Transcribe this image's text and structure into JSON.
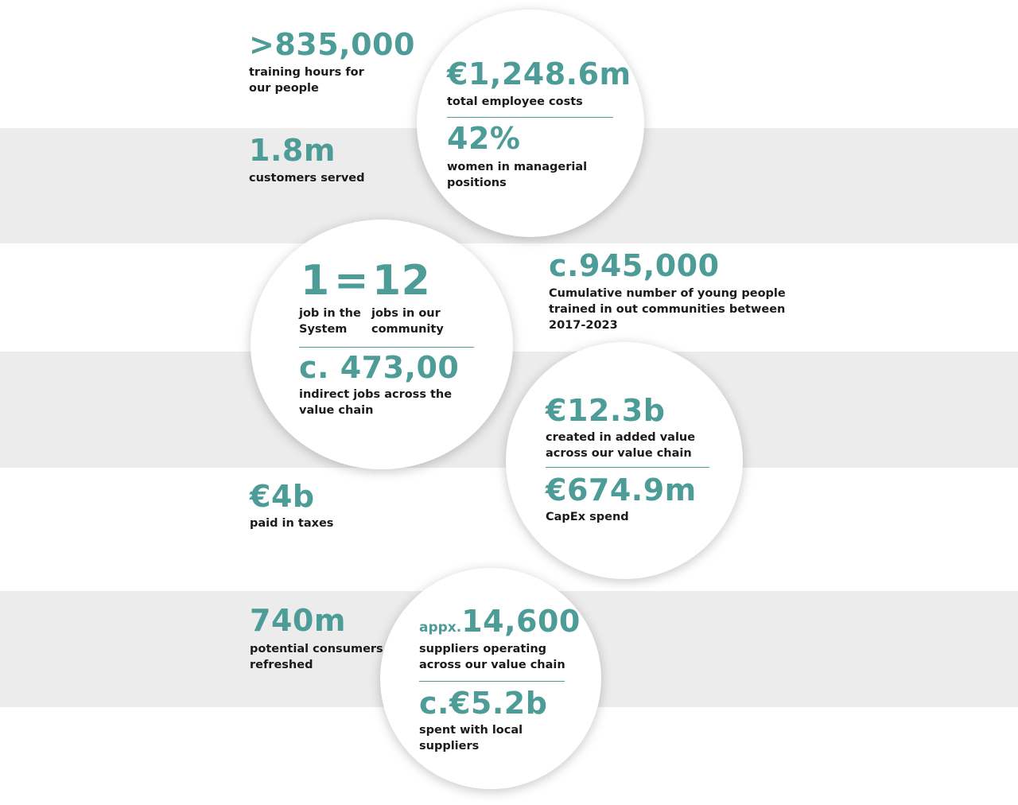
{
  "stats": {
    "training_hours": {
      "value": ">835,000",
      "label": "training hours for\nour people"
    },
    "customers": {
      "value": "1.8m",
      "label": "customers served"
    },
    "employee_costs": {
      "value": "€1,248.6m",
      "label": "total employee costs"
    },
    "women_managers": {
      "value": "42%",
      "label": "women in managerial\npositions"
    },
    "jobs_ratio": {
      "left": "1",
      "equals": "=",
      "right": "12",
      "left_label": "job in the\nSystem",
      "right_label": "jobs in our\ncommunity"
    },
    "indirect_jobs": {
      "value": "c. 473,00",
      "label": "indirect jobs across the\nvalue chain"
    },
    "young_people": {
      "value": "c.945,000",
      "label": "Cumulative number of young people\ntrained in out communities between\n2017-2023"
    },
    "added_value": {
      "value": "€12.3b",
      "label": "created in added value\nacross our value chain"
    },
    "capex": {
      "value": "€674.9m",
      "label": "CapEx spend"
    },
    "taxes": {
      "value": "€4b",
      "label": "paid in taxes"
    },
    "consumers": {
      "value": "740m",
      "label": "potential consumers\nrefreshed"
    },
    "suppliers": {
      "prefix": "appx.",
      "value": "14,600",
      "label": "suppliers operating\nacross our value chain"
    },
    "local_suppliers": {
      "value": "c.€5.2b",
      "label": "spent with local\nsuppliers"
    }
  },
  "colors": {
    "accent": "#4d9c98",
    "band": "#ececec",
    "text": "#1a1a1a"
  }
}
